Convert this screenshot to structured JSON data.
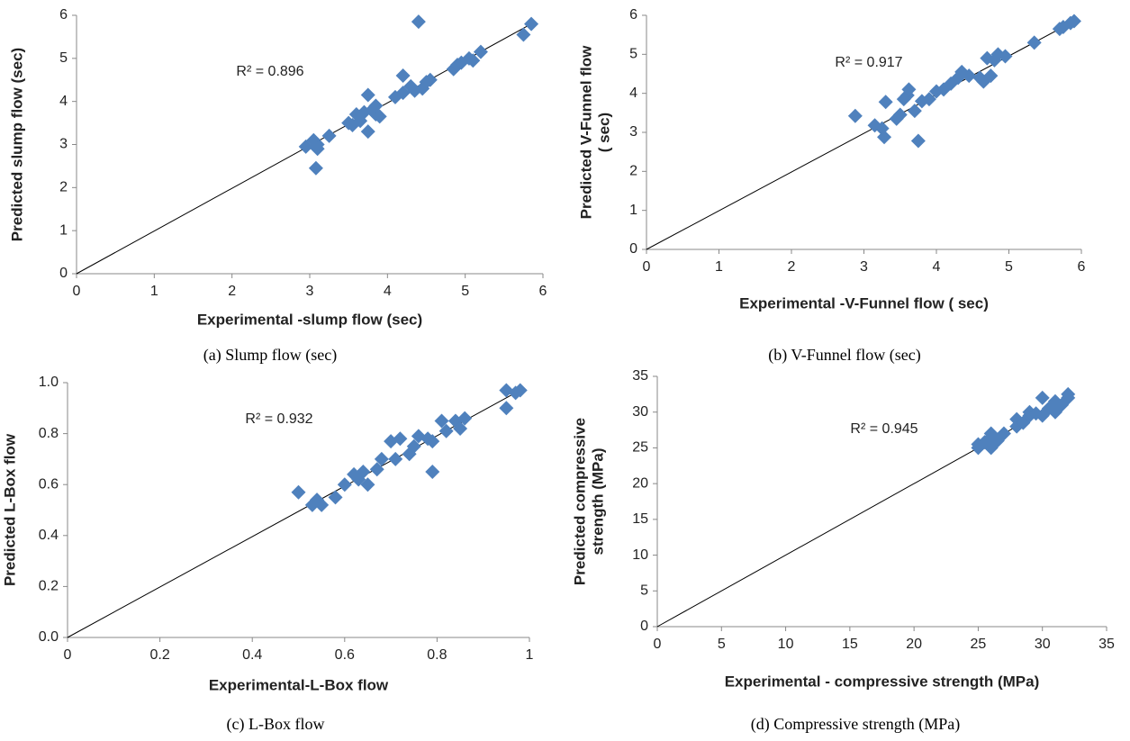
{
  "chart_data": [
    {
      "type": "scatter",
      "caption": "(a) Slump flow (sec)",
      "x_label": "Experimental -slump flow (sec)",
      "y_label": [
        "Predicted slump flow (sec)"
      ],
      "annotation": "R² = 0.896",
      "color": "#4f81bd",
      "xlim": [
        0,
        6
      ],
      "ylim": [
        0,
        6
      ],
      "xticks": [
        0,
        1,
        2,
        3,
        4,
        5,
        6
      ],
      "yticks": [
        0,
        1,
        2,
        3,
        4,
        5,
        6
      ],
      "x": [
        2.95,
        3.05,
        3.1,
        3.1,
        3.08,
        3.25,
        3.5,
        3.55,
        3.6,
        3.65,
        3.7,
        3.75,
        3.75,
        3.8,
        3.85,
        3.9,
        3.85,
        4.1,
        4.2,
        4.2,
        4.3,
        4.35,
        4.4,
        4.45,
        4.5,
        4.55,
        4.85,
        4.9,
        4.95,
        5.05,
        5.1,
        5.2,
        5.75,
        5.85
      ],
      "y": [
        2.95,
        3.1,
        3.0,
        2.9,
        2.45,
        3.2,
        3.5,
        3.45,
        3.7,
        3.55,
        3.75,
        4.15,
        3.3,
        3.8,
        3.7,
        3.65,
        3.9,
        4.1,
        4.2,
        4.6,
        4.35,
        4.25,
        5.85,
        4.3,
        4.45,
        4.5,
        4.75,
        4.85,
        4.9,
        5.0,
        4.95,
        5.15,
        5.55,
        5.8
      ],
      "trendline": {
        "x": [
          0,
          5.9
        ],
        "y": [
          0,
          5.85
        ]
      }
    },
    {
      "type": "scatter",
      "caption": "(b) V-Funnel flow (sec)",
      "x_label": "Experimental  -V-Funnel  flow ( sec)",
      "y_label": [
        "Predicted V-Funnel  flow",
        "( sec)"
      ],
      "annotation": "R² = 0.917",
      "color": "#4f81bd",
      "xlim": [
        0,
        6
      ],
      "ylim": [
        0,
        6
      ],
      "xticks": [
        0,
        1,
        2,
        3,
        4,
        5,
        6
      ],
      "yticks": [
        0,
        1,
        2,
        3,
        4,
        5,
        6
      ],
      "x": [
        2.88,
        3.15,
        3.25,
        3.28,
        3.3,
        3.45,
        3.5,
        3.55,
        3.6,
        3.62,
        3.7,
        3.75,
        3.8,
        3.9,
        4.0,
        4.1,
        4.2,
        4.3,
        4.35,
        4.45,
        4.6,
        4.65,
        4.7,
        4.75,
        4.8,
        4.85,
        4.95,
        5.35,
        5.7,
        5.75,
        5.85,
        5.9
      ],
      "y": [
        3.42,
        3.18,
        3.1,
        2.88,
        3.78,
        3.35,
        3.45,
        3.85,
        3.95,
        4.1,
        3.55,
        2.78,
        3.8,
        3.85,
        4.05,
        4.1,
        4.25,
        4.4,
        4.55,
        4.45,
        4.4,
        4.3,
        4.9,
        4.45,
        4.85,
        5.0,
        4.95,
        5.3,
        5.65,
        5.7,
        5.8,
        5.85
      ],
      "trendline": {
        "x": [
          0,
          5.9
        ],
        "y": [
          0,
          5.85
        ]
      }
    },
    {
      "type": "scatter",
      "caption": "(c) L-Box flow",
      "x_label": "Experimental-L-Box   flow",
      "y_label": [
        "Predicted  L-Box flow"
      ],
      "annotation": "R² = 0.932",
      "color": "#4f81bd",
      "xlim": [
        0,
        1
      ],
      "ylim": [
        0,
        1
      ],
      "xticks": [
        0,
        0.2,
        0.4,
        0.6,
        0.8,
        1
      ],
      "yticks": [
        {
          "value": 0,
          "label": "0.0"
        },
        0.2,
        0.4,
        0.6,
        0.8,
        {
          "value": 1,
          "label": "1.0"
        }
      ],
      "x": [
        0.5,
        0.53,
        0.54,
        0.55,
        0.58,
        0.6,
        0.62,
        0.63,
        0.64,
        0.65,
        0.67,
        0.68,
        0.7,
        0.71,
        0.72,
        0.74,
        0.75,
        0.76,
        0.78,
        0.79,
        0.79,
        0.81,
        0.82,
        0.84,
        0.85,
        0.86,
        0.95,
        0.95,
        0.97,
        0.98
      ],
      "y": [
        0.57,
        0.52,
        0.54,
        0.52,
        0.55,
        0.6,
        0.64,
        0.62,
        0.65,
        0.6,
        0.66,
        0.7,
        0.77,
        0.7,
        0.78,
        0.72,
        0.75,
        0.79,
        0.78,
        0.65,
        0.77,
        0.85,
        0.81,
        0.85,
        0.82,
        0.86,
        0.9,
        0.97,
        0.96,
        0.97
      ],
      "trendline": {
        "x": [
          0,
          0.98
        ],
        "y": [
          0,
          0.97
        ]
      }
    },
    {
      "type": "scatter",
      "caption": "(d) Compressive strength (MPa)",
      "x_label": "Experimental - compressive strength (MPa)",
      "y_label": [
        "Predicted compressive",
        "strength (MPa)"
      ],
      "annotation": "R² = 0.945",
      "color": "#4f81bd",
      "xlim": [
        0,
        35
      ],
      "ylim": [
        0,
        35
      ],
      "xticks": [
        0,
        5,
        10,
        15,
        20,
        25,
        30,
        35
      ],
      "yticks": [
        0,
        5,
        10,
        15,
        20,
        25,
        30,
        35
      ],
      "x": [
        25,
        25,
        25.5,
        26,
        26,
        26,
        26.5,
        27,
        28,
        28,
        28.5,
        29,
        29,
        29.5,
        30,
        30,
        30.5,
        31,
        31,
        31.5,
        32,
        32
      ],
      "y": [
        25,
        25.5,
        25.8,
        25,
        26.5,
        27,
        26,
        27,
        28,
        29,
        28.5,
        29.5,
        30,
        29.8,
        29.5,
        32,
        30.5,
        30,
        31.5,
        31,
        32,
        32.5
      ],
      "trendline": {
        "x": [
          0,
          32
        ],
        "y": [
          0,
          32
        ]
      }
    }
  ]
}
